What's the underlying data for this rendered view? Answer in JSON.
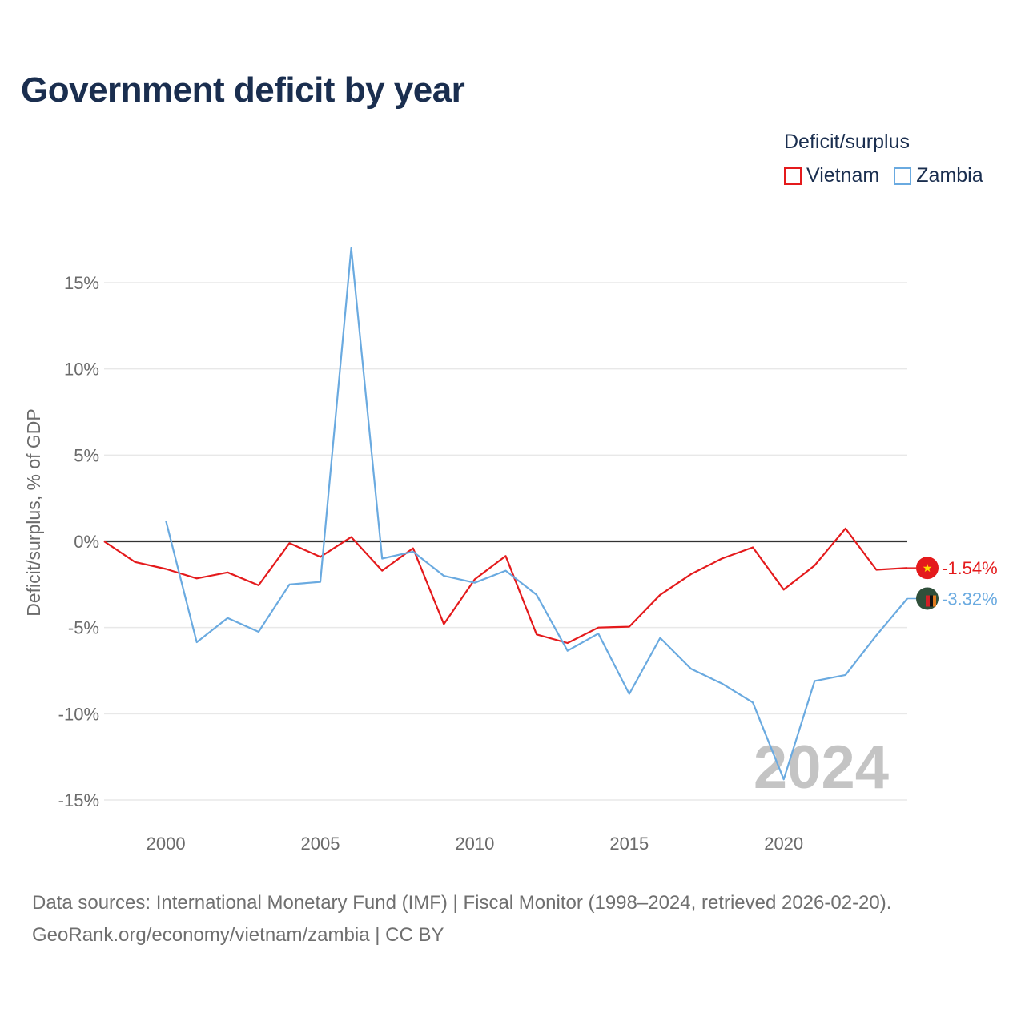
{
  "chart_data": {
    "type": "line",
    "title": "Government deficit by year",
    "ylabel": "Deficit/surplus, % of GDP",
    "xlabel": "",
    "xlim": [
      1998,
      2024
    ],
    "ylim": [
      -16.5,
      18
    ],
    "yticks": [
      15,
      10,
      5,
      0,
      -5,
      -10,
      -15
    ],
    "ytick_labels": [
      "15%",
      "10%",
      "5%",
      "0%",
      "-5%",
      "-10%",
      "-15%"
    ],
    "xticks": [
      2000,
      2005,
      2010,
      2015,
      2020
    ],
    "xtick_labels": [
      "2000",
      "2005",
      "2010",
      "2015",
      "2020"
    ],
    "legend_title": "Deficit/surplus",
    "year_watermark": "2024",
    "series": [
      {
        "name": "Vietnam",
        "color": "#e41a1c",
        "end_label": "-1.54%",
        "icon": "vietnam-flag-icon",
        "points": [
          [
            1998,
            0
          ],
          [
            1999,
            -1.2
          ],
          [
            2000,
            -1.6
          ],
          [
            2001,
            -2.15
          ],
          [
            2002,
            -1.8
          ],
          [
            2003,
            -2.55
          ],
          [
            2004,
            -0.1
          ],
          [
            2005,
            -0.9
          ],
          [
            2006,
            0.25
          ],
          [
            2007,
            -1.7
          ],
          [
            2008,
            -0.4
          ],
          [
            2009,
            -4.8
          ],
          [
            2010,
            -2.2
          ],
          [
            2011,
            -0.85
          ],
          [
            2012,
            -5.4
          ],
          [
            2013,
            -5.9
          ],
          [
            2014,
            -5.0
          ],
          [
            2015,
            -4.95
          ],
          [
            2016,
            -3.1
          ],
          [
            2017,
            -1.9
          ],
          [
            2018,
            -1.0
          ],
          [
            2019,
            -0.35
          ],
          [
            2020,
            -2.8
          ],
          [
            2021,
            -1.4
          ],
          [
            2022,
            0.75
          ],
          [
            2023,
            -1.65
          ],
          [
            2024,
            -1.54
          ]
        ]
      },
      {
        "name": "Zambia",
        "color": "#6aaae0",
        "end_label": "-3.32%",
        "icon": "zambia-flag-icon",
        "points": [
          [
            2000,
            1.2
          ],
          [
            2001,
            -5.85
          ],
          [
            2002,
            -4.45
          ],
          [
            2003,
            -5.25
          ],
          [
            2004,
            -2.5
          ],
          [
            2005,
            -2.35
          ],
          [
            2006,
            17.0
          ],
          [
            2007,
            -1.0
          ],
          [
            2008,
            -0.6
          ],
          [
            2009,
            -2.0
          ],
          [
            2010,
            -2.4
          ],
          [
            2011,
            -1.7
          ],
          [
            2012,
            -3.1
          ],
          [
            2013,
            -6.35
          ],
          [
            2014,
            -5.35
          ],
          [
            2015,
            -8.85
          ],
          [
            2016,
            -5.6
          ],
          [
            2017,
            -7.4
          ],
          [
            2018,
            -8.25
          ],
          [
            2019,
            -9.35
          ],
          [
            2020,
            -13.8
          ],
          [
            2021,
            -8.1
          ],
          [
            2022,
            -7.75
          ],
          [
            2023,
            -5.45
          ],
          [
            2024,
            -3.32
          ]
        ]
      }
    ]
  },
  "source_line1": "Data sources: International Monetary Fund (IMF) | Fiscal Monitor (1998–2024, retrieved 2026-02-20).",
  "source_line2": "GeoRank.org/economy/vietnam/zambia | CC BY"
}
